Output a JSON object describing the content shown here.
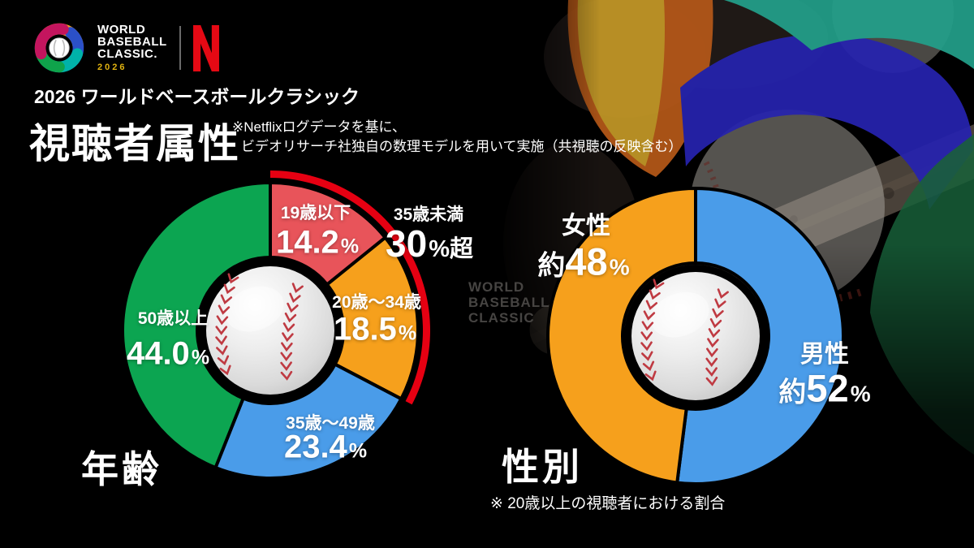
{
  "brand": {
    "wbc_logo_lines": [
      "WORLD",
      "BASEBALL",
      "CLASSIC."
    ],
    "wbc_logo_year": "2026",
    "watermark_lines": [
      "WORLD",
      "BASEBALL",
      "CLASSIC"
    ]
  },
  "header": {
    "subtitle": "2026 ワールドベースボールクラシック",
    "title": "視聴者属性",
    "note_line1": "※Netflixログデータを基に、",
    "note_line2": "ビデオリサーチ社独自の数理モデルを用いて実施（共視聴の反映含む）"
  },
  "colors": {
    "background": "#000000",
    "netflix_red": "#e50914",
    "highlight_arc_red": "#e60012",
    "age_red": "#e8545a",
    "orange": "#f6a01c",
    "blue": "#4a9ce9",
    "green": "#0ca551"
  },
  "chart_data": [
    {
      "type": "pie",
      "variant": "donut",
      "title": "年齢",
      "start_angle": "top",
      "direction": "clockwise",
      "legend_position": "in-slice",
      "segments": [
        {
          "label": "19歳以下",
          "value": 14.2,
          "display": "14.2",
          "unit": "%",
          "color": "#e8545a"
        },
        {
          "label": "20歳～34歳",
          "value": 18.5,
          "display": "18.5",
          "unit": "%",
          "color": "#f6a01c"
        },
        {
          "label": "35歳～49歳",
          "value": 23.4,
          "display": "23.4",
          "unit": "%",
          "color": "#4a9ce9"
        },
        {
          "label": "50歳以上",
          "value": 44.0,
          "display": "44.0",
          "unit": "%",
          "color": "#0ca551"
        }
      ],
      "annotation": {
        "label": "35歳未満",
        "display": "30",
        "unit": "%超",
        "covers_segments": [
          0,
          1
        ],
        "arc_color": "#e60012"
      }
    },
    {
      "type": "pie",
      "variant": "donut",
      "title": "性別",
      "start_angle": "top",
      "direction": "clockwise",
      "legend_position": "in-slice",
      "segments": [
        {
          "label": "男性",
          "value": 52,
          "prefix": "約",
          "display": "52",
          "unit": "%",
          "color": "#4a9ce9"
        },
        {
          "label": "女性",
          "value": 48,
          "prefix": "約",
          "display": "48",
          "unit": "%",
          "color": "#f6a01c"
        }
      ],
      "footnote": "※ 20歳以上の視聴者における割合"
    }
  ]
}
